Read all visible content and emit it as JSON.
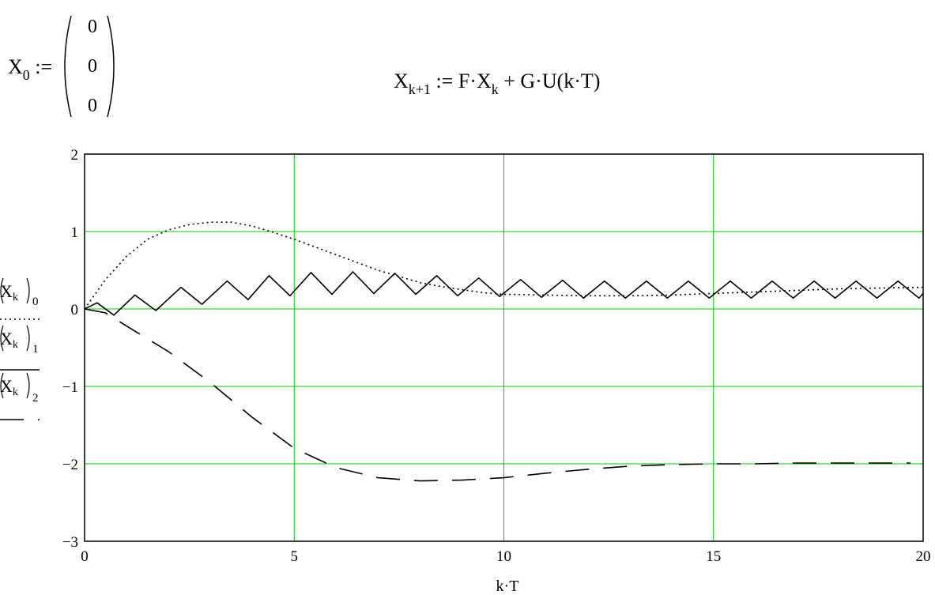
{
  "worksheet": {
    "init_eq": {
      "lhs": "X",
      "lhs_sub": "0",
      "assign": ":=",
      "vector": [
        "0",
        "0",
        "0"
      ]
    },
    "recur_eq": {
      "x1": "X",
      "x1_sub": "k+1",
      "assign": ":=",
      "mid": "F·X",
      "x2_sub": "k",
      "tail": "+ G·U(k·T)"
    }
  },
  "chart_data": {
    "type": "line",
    "title": "",
    "xlabel": "k·T",
    "xlim": [
      0,
      20
    ],
    "ylim": [
      -3,
      2
    ],
    "x_ticks": [
      "0",
      "5",
      "10",
      "15",
      "20"
    ],
    "y_ticks": [
      "2",
      "1",
      "0",
      "-1",
      "-2",
      "-3"
    ],
    "grid": true,
    "grid_color": "#00cc00",
    "legend": [
      {
        "base": "X",
        "base_sub": "k",
        "index": "0",
        "style": "dotted"
      },
      {
        "base": "X",
        "base_sub": "k",
        "index": "1",
        "style": "solid"
      },
      {
        "base": "X",
        "base_sub": "k",
        "index": "2",
        "style": "dashed"
      }
    ],
    "series": [
      {
        "style": "dotted",
        "color": "#000000",
        "x": [
          0,
          0.5,
          1,
          1.5,
          2,
          2.5,
          3,
          3.5,
          4,
          4.5,
          5,
          5.5,
          6,
          6.5,
          7,
          7.5,
          8,
          8.5,
          9,
          9.5,
          10,
          11,
          12,
          13,
          14,
          15,
          16,
          17,
          18,
          19,
          20
        ],
        "values": [
          0,
          0.38,
          0.68,
          0.9,
          1.02,
          1.09,
          1.12,
          1.12,
          1.07,
          0.99,
          0.9,
          0.8,
          0.7,
          0.6,
          0.5,
          0.42,
          0.34,
          0.29,
          0.25,
          0.21,
          0.19,
          0.18,
          0.17,
          0.17,
          0.18,
          0.2,
          0.22,
          0.24,
          0.26,
          0.27,
          0.28
        ]
      },
      {
        "style": "solid",
        "color": "#000000",
        "x": [
          0,
          0.3,
          0.7,
          1.2,
          1.7,
          2.3,
          2.8,
          3.4,
          3.9,
          4.4,
          4.9,
          5.4,
          5.9,
          6.4,
          6.9,
          7.4,
          7.9,
          8.4,
          8.9,
          9.4,
          9.9,
          10.4,
          10.9,
          11.4,
          11.9,
          12.4,
          12.9,
          13.4,
          13.9,
          14.4,
          14.9,
          15.4,
          15.9,
          16.4,
          16.9,
          17.4,
          17.9,
          18.4,
          18.9,
          19.4,
          19.9,
          20
        ],
        "values": [
          0,
          0.08,
          -0.08,
          0.18,
          -0.02,
          0.28,
          0.06,
          0.36,
          0.12,
          0.43,
          0.17,
          0.47,
          0.19,
          0.48,
          0.2,
          0.46,
          0.19,
          0.43,
          0.17,
          0.4,
          0.16,
          0.38,
          0.15,
          0.37,
          0.14,
          0.36,
          0.14,
          0.36,
          0.14,
          0.36,
          0.14,
          0.36,
          0.14,
          0.36,
          0.14,
          0.36,
          0.14,
          0.36,
          0.14,
          0.36,
          0.14,
          0.2
        ]
      },
      {
        "style": "dashed",
        "color": "#000000",
        "x": [
          0,
          0.5,
          1,
          2,
          3,
          4,
          5,
          6,
          7,
          8,
          9,
          10,
          11,
          12,
          13,
          14,
          15,
          16,
          17,
          18,
          19,
          19.7
        ],
        "values": [
          0,
          -0.05,
          -0.22,
          -0.55,
          -0.95,
          -1.4,
          -1.8,
          -2.05,
          -2.18,
          -2.22,
          -2.21,
          -2.18,
          -2.12,
          -2.07,
          -2.03,
          -2.01,
          -2.0,
          -2.0,
          -1.99,
          -1.99,
          -1.99,
          -1.99
        ]
      }
    ]
  }
}
